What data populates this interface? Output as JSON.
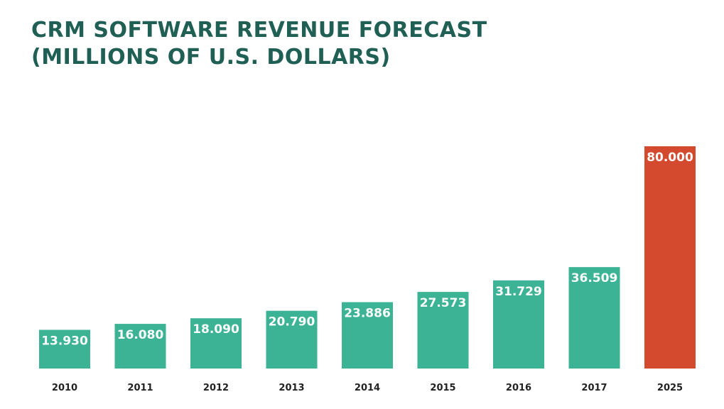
{
  "chart_data": {
    "type": "bar",
    "title_line1": "CRM SOFTWARE REVENUE FORECAST",
    "title_line2": "(MILLIONS OF U.S. DOLLARS)",
    "xlabel": "",
    "ylabel": "",
    "categories": [
      "2010",
      "2011",
      "2012",
      "2013",
      "2014",
      "2015",
      "2016",
      "2017",
      "2025"
    ],
    "values": [
      13930,
      16080,
      18090,
      20790,
      23886,
      27573,
      31729,
      36509,
      80000
    ],
    "value_labels": [
      "13.930",
      "16.080",
      "18.090",
      "20.790",
      "23.886",
      "27.573",
      "31.729",
      "36.509",
      "80.000"
    ],
    "bar_colors": [
      "#3bb394",
      "#3bb394",
      "#3bb394",
      "#3bb394",
      "#3bb394",
      "#3bb394",
      "#3bb394",
      "#3bb394",
      "#d44a2f"
    ],
    "ylim": [
      0,
      80000
    ],
    "grid": false,
    "legend": "none"
  }
}
